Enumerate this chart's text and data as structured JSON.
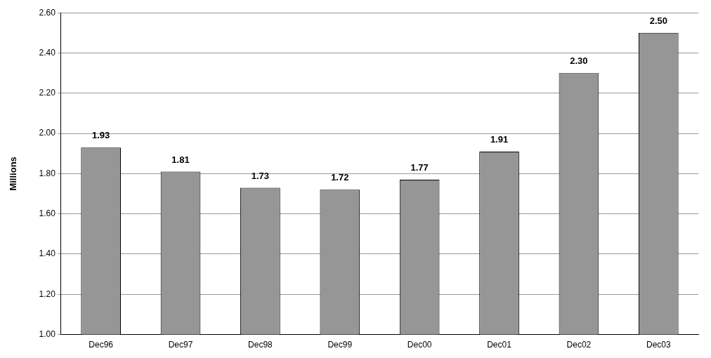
{
  "chart_data": {
    "type": "bar",
    "ylabel": "Millions",
    "categories": [
      "Dec96",
      "Dec97",
      "Dec98",
      "Dec99",
      "Dec00",
      "Dec01",
      "Dec02",
      "Dec03"
    ],
    "values": [
      1.93,
      1.81,
      1.73,
      1.72,
      1.77,
      1.91,
      2.3,
      2.5
    ],
    "value_labels": [
      "1.93",
      "1.81",
      "1.73",
      "1.72",
      "1.77",
      "1.91",
      "2.30",
      "2.50"
    ],
    "color": "#969696",
    "ylim": [
      1.0,
      2.6
    ],
    "yticks": [
      {
        "value": 1.0,
        "label": "1.00"
      },
      {
        "value": 1.2,
        "label": "1.20"
      },
      {
        "value": 1.4,
        "label": "1.40"
      },
      {
        "value": 1.6,
        "label": "1.60"
      },
      {
        "value": 1.8,
        "label": "1.80"
      },
      {
        "value": 2.0,
        "label": "2.00"
      },
      {
        "value": 2.2,
        "label": "2.20"
      },
      {
        "value": 2.4,
        "label": "2.40"
      },
      {
        "value": 2.6,
        "label": "2.60"
      }
    ],
    "grid": "y",
    "legend": false
  }
}
